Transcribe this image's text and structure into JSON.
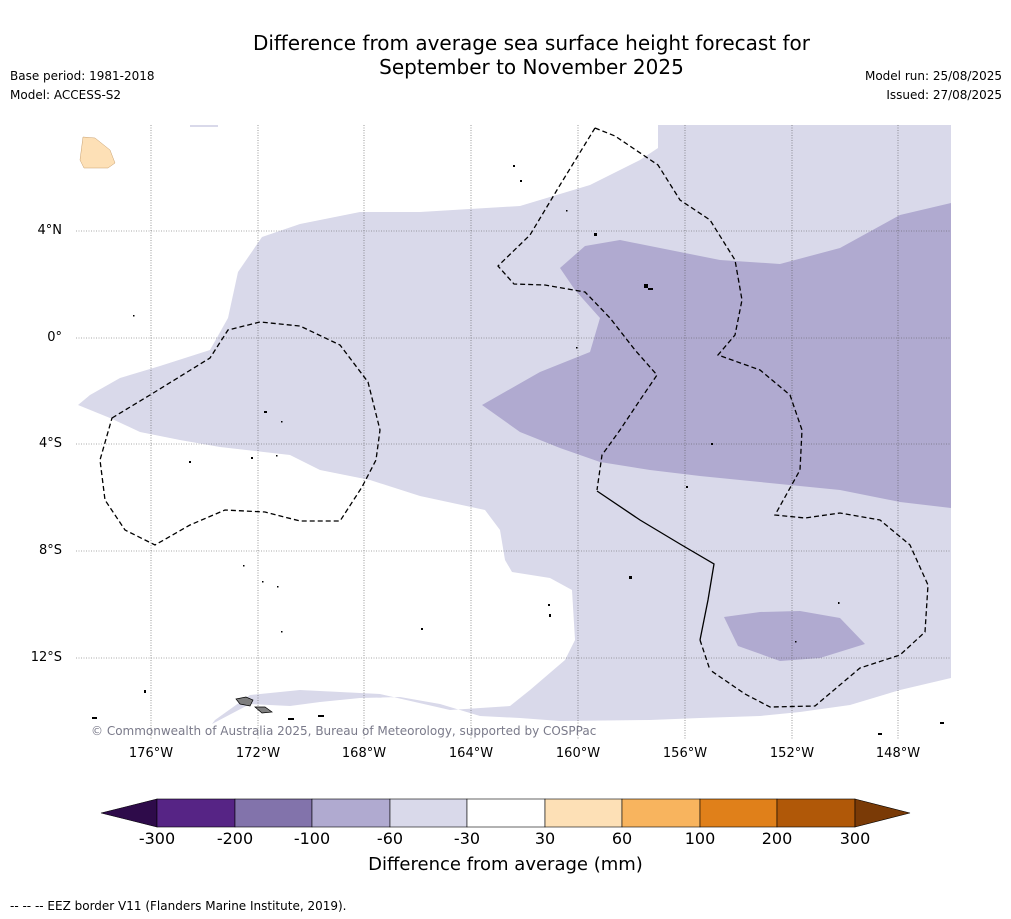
{
  "header": {
    "title_line1": "Difference from average sea surface height forecast for",
    "title_line2": "September to November 2025",
    "base_period": "Base period: 1981-2018",
    "model": "Model: ACCESS-S2",
    "model_run": "Model run: 25/08/2025",
    "issued": "Issued: 27/08/2025"
  },
  "map": {
    "lat_labels": [
      "4°N",
      "0°",
      "4°S",
      "8°S",
      "12°S"
    ],
    "lon_labels": [
      "176°W",
      "172°W",
      "168°W",
      "164°W",
      "160°W",
      "156°W",
      "152°W",
      "148°W"
    ],
    "copyright": "© Commonwealth of Australia 2025, Bureau of Meteorology, supported by COSPPac",
    "fill_colors": {
      "minus100_to_minus60": "#b0aad0",
      "minus60_to_minus30": "#d9d9ea",
      "30_to_60": "#fde0b6",
      "land": "#7f7f7f"
    }
  },
  "colorbar": {
    "title": "Difference from average (mm)",
    "ticks": [
      "-300",
      "-200",
      "-100",
      "-60",
      "-30",
      "30",
      "60",
      "100",
      "200",
      "300"
    ],
    "colors": [
      "#2e0b4a",
      "#562485",
      "#8273ab",
      "#b0aad0",
      "#d9d9ea",
      "#ffffff",
      "#fde0b6",
      "#f8b45e",
      "#e0801a",
      "#b05808",
      "#7a3a06"
    ]
  },
  "footnote": "--  --  -- EEZ border V11 (Flanders Marine Institute, 2019)."
}
